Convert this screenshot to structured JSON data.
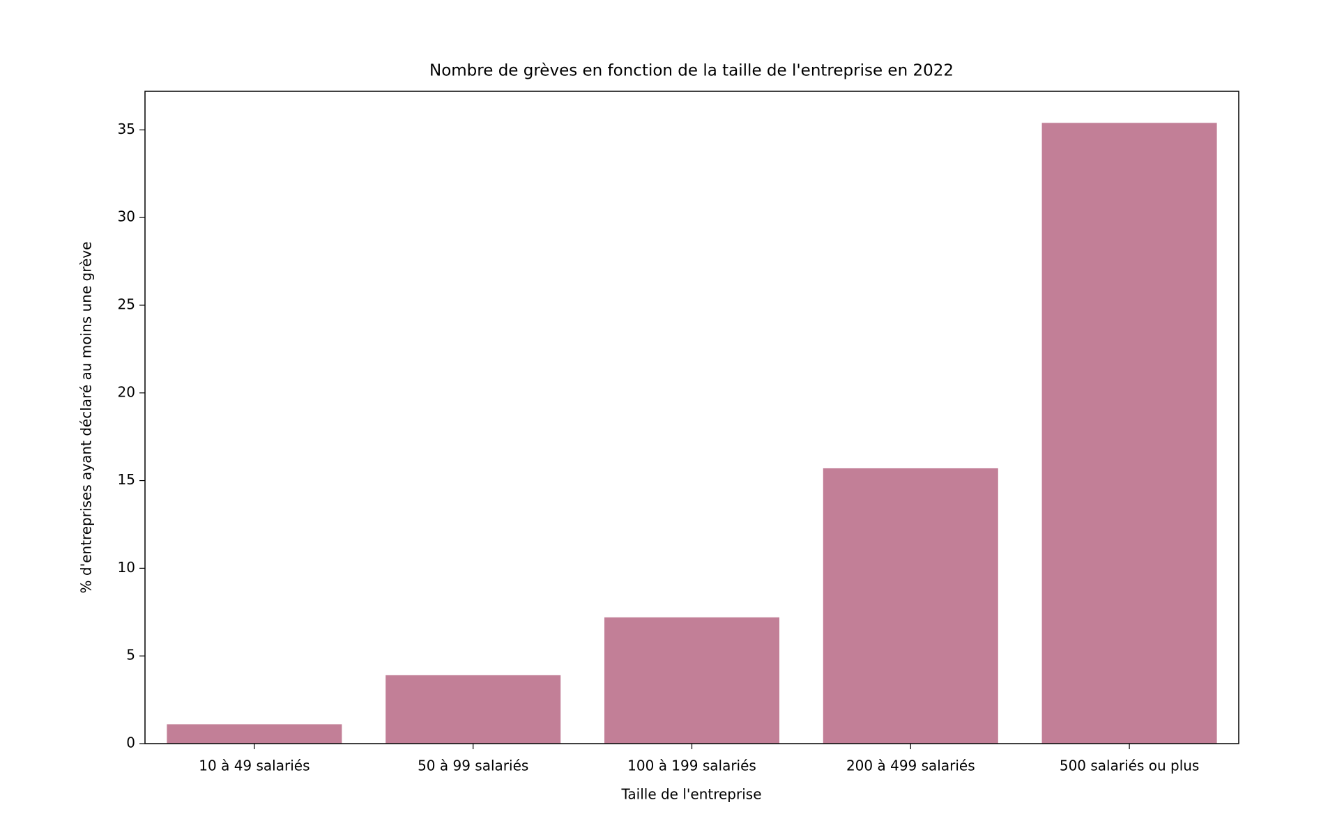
{
  "chart_data": {
    "type": "bar",
    "title": "Nombre de grèves en fonction de la taille de l'entreprise en 2022",
    "x_label": "Taille de l'entreprise",
    "y_label": "% d'entreprises ayant déclaré au moins une grève",
    "categories": [
      "10 à 49 salariés",
      "50 à 99 salariés",
      "100 à 199 salariés",
      "200 à 499 salariés",
      "500 salariés ou plus"
    ],
    "values": [
      1.1,
      3.9,
      7.2,
      15.7,
      35.4
    ],
    "color": "#c27f97",
    "ylim": [
      0,
      37.2
    ],
    "yticks": [
      0,
      5,
      10,
      15,
      20,
      25,
      30,
      35
    ],
    "grid": false
  }
}
